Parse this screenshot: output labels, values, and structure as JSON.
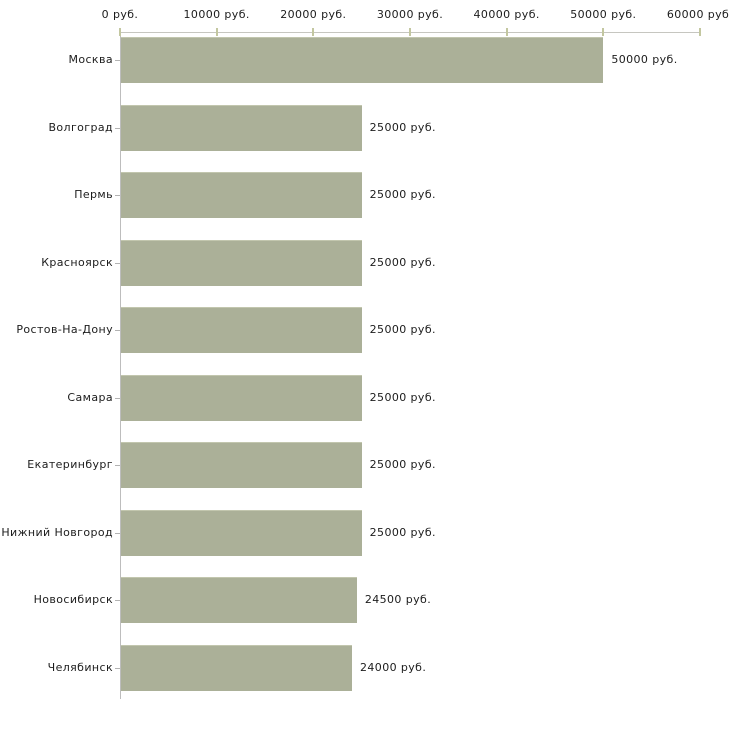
{
  "chart_data": {
    "type": "bar",
    "orientation": "horizontal",
    "title": "",
    "xlabel": "",
    "ylabel": "",
    "categories": [
      "Москва",
      "Волгоград",
      "Пермь",
      "Красноярск",
      "Ростов-На-Дону",
      "Самара",
      "Екатеринбург",
      "Нижний Новгород",
      "Новосибирск",
      "Челябинск"
    ],
    "values": [
      50000,
      25000,
      25000,
      25000,
      25000,
      25000,
      25000,
      25000,
      24500,
      24000
    ],
    "value_labels": [
      "50000 руб.",
      "25000 руб.",
      "25000 руб.",
      "25000 руб.",
      "25000 руб.",
      "25000 руб.",
      "25000 руб.",
      "25000 руб.",
      "24500 руб.",
      "24000 руб."
    ],
    "xlim": [
      0,
      60000
    ],
    "xticks": [
      0,
      10000,
      20000,
      30000,
      40000,
      50000,
      60000
    ],
    "xtick_labels": [
      "0 руб.",
      "10000 руб.",
      "20000 руб.",
      "30000 руб.",
      "40000 руб.",
      "50000 руб.",
      "60000 руб."
    ],
    "grid": false,
    "legend": false,
    "axis_position": "top",
    "colors": {
      "bar": "#abb098",
      "x_axis_line": "#c6c6c0",
      "x_tick": "#c3c7a0",
      "y_axis_line": "#bdbdbd",
      "category_tick": "#b3b3b3",
      "text": "#1c1c1c",
      "background": "#ffffff"
    }
  }
}
